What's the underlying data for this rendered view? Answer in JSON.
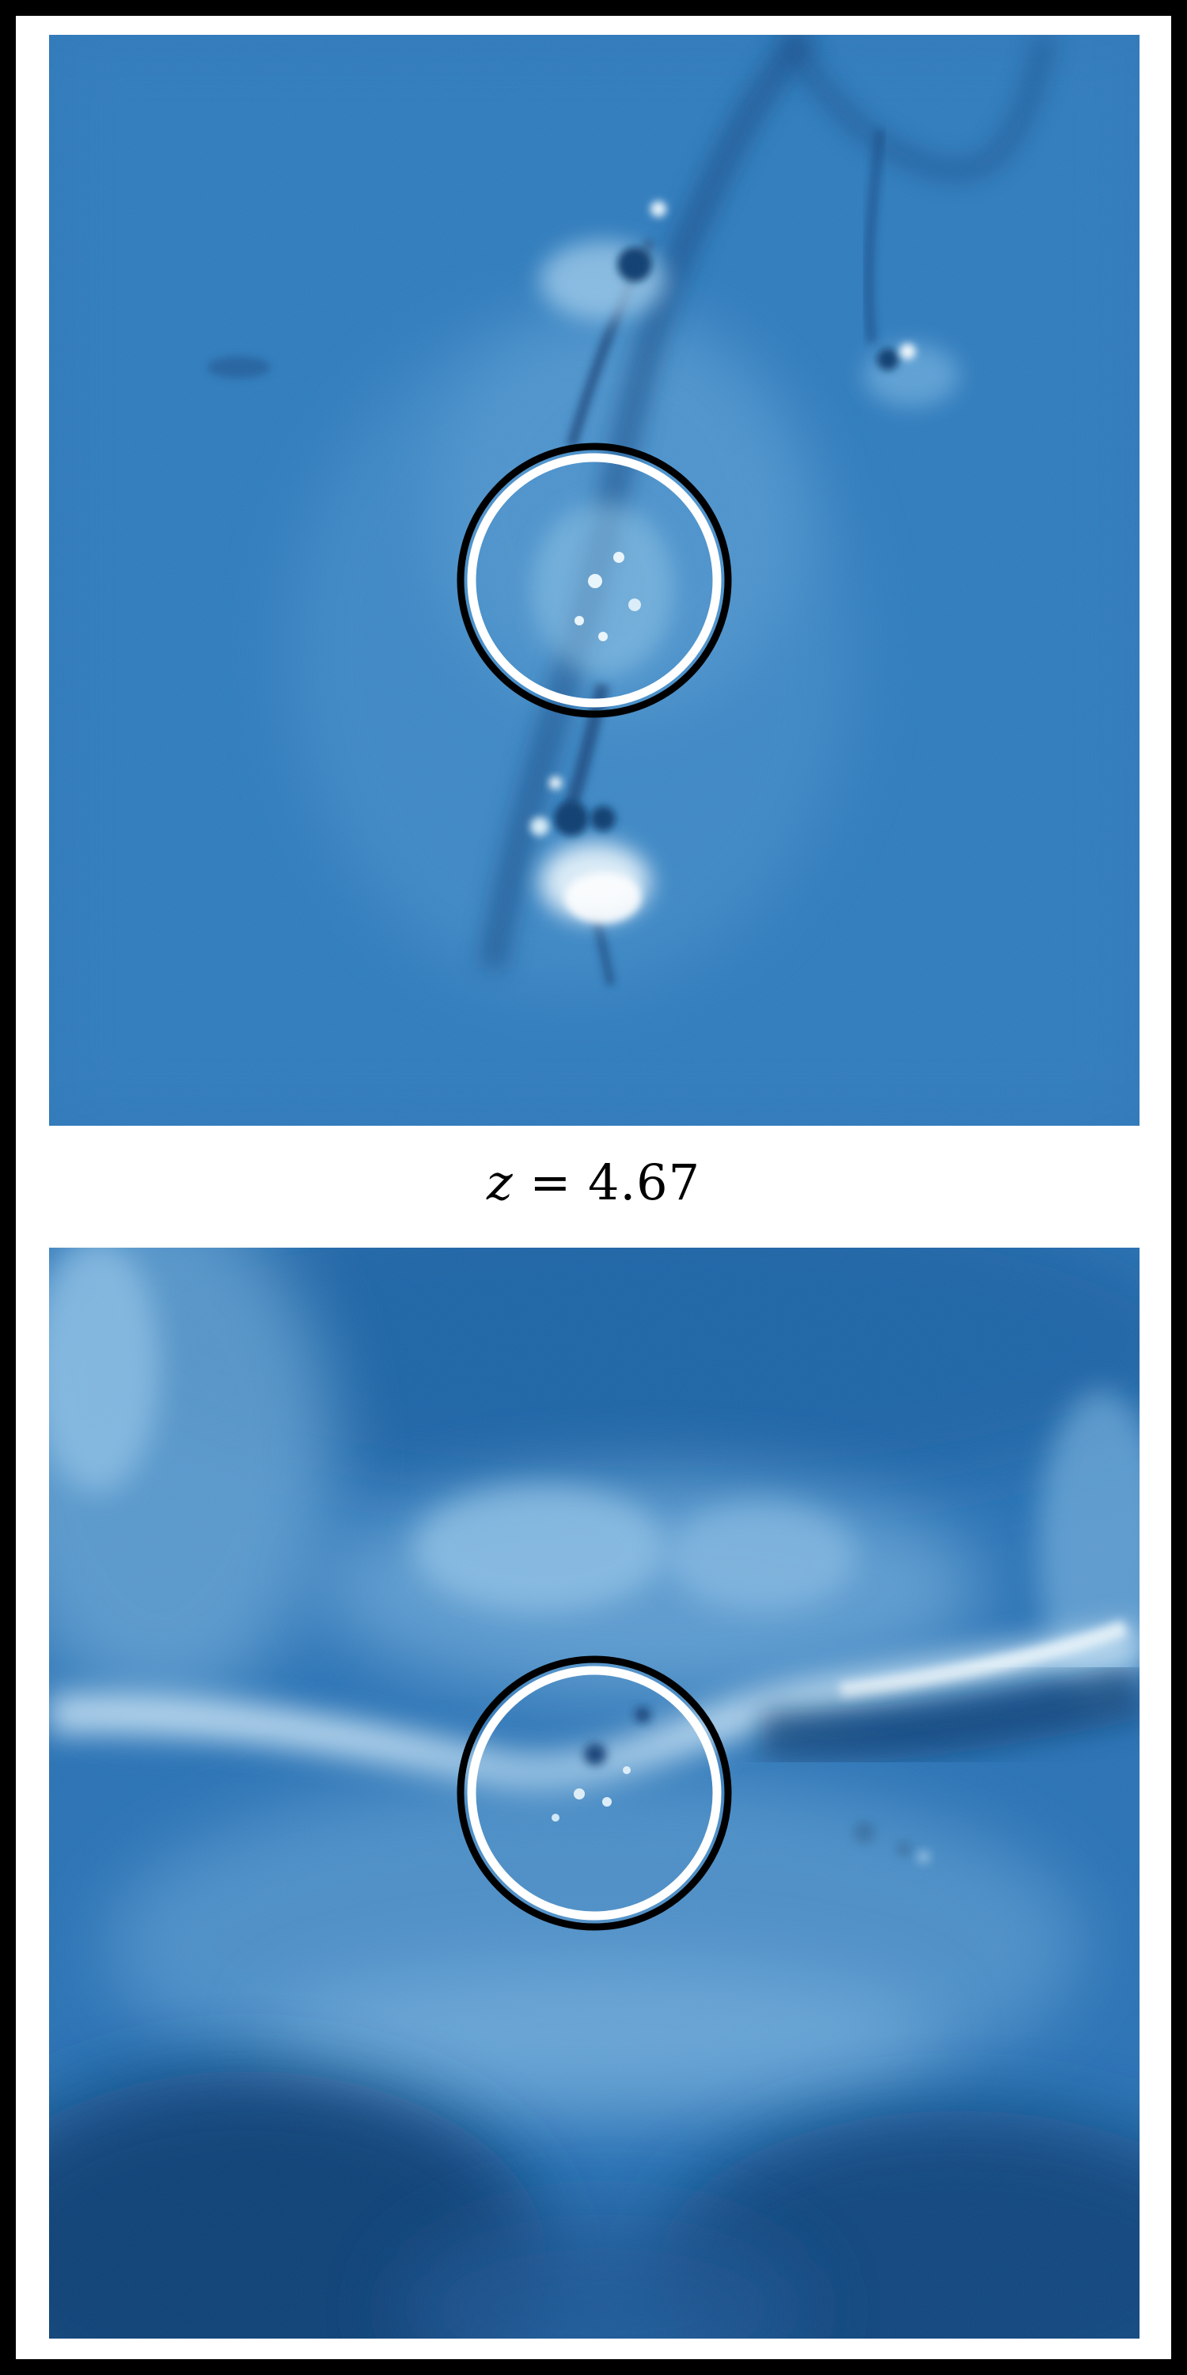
{
  "label": {
    "variable": "z",
    "equals": " = ",
    "value": "4.67"
  },
  "colors": {
    "frame_border": "#000000",
    "background": "#ffffff",
    "field_mid_blue": "#2b74b6",
    "field_dark_blue": "#0d3f74",
    "field_light_blue": "#8cc2e4",
    "circle_outer": "#000000",
    "circle_inner": "#ffffff"
  },
  "panels": [
    {
      "name": "top-panel",
      "circle_icon": "aperture-circle-icon"
    },
    {
      "name": "bottom-panel",
      "circle_icon": "aperture-circle-icon"
    }
  ]
}
